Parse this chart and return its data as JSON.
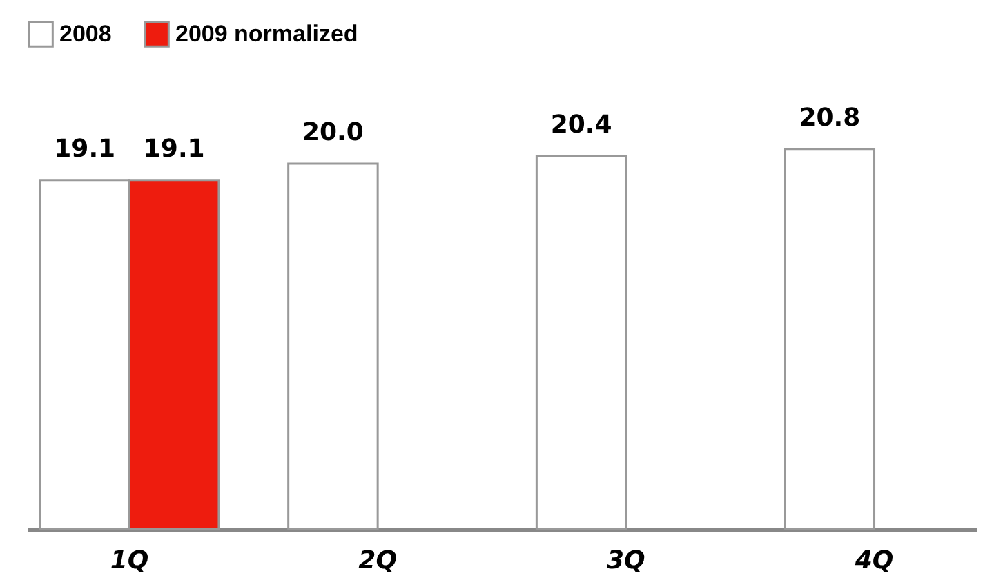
{
  "chart_data": {
    "type": "bar",
    "categories": [
      "1Q",
      "2Q",
      "3Q",
      "4Q"
    ],
    "series": [
      {
        "name": "2008",
        "color": "#ffffff",
        "values": [
          19.1,
          20.0,
          20.4,
          20.8
        ],
        "value_labels": [
          "19.1",
          "20.0",
          "20.4",
          "20.8"
        ]
      },
      {
        "name": "2009 normalized",
        "color": "#ee1c0e",
        "values": [
          19.1,
          null,
          null,
          null
        ],
        "value_labels": [
          "19.1",
          null,
          null,
          null
        ]
      }
    ],
    "legend": "top left",
    "grid": false
  }
}
